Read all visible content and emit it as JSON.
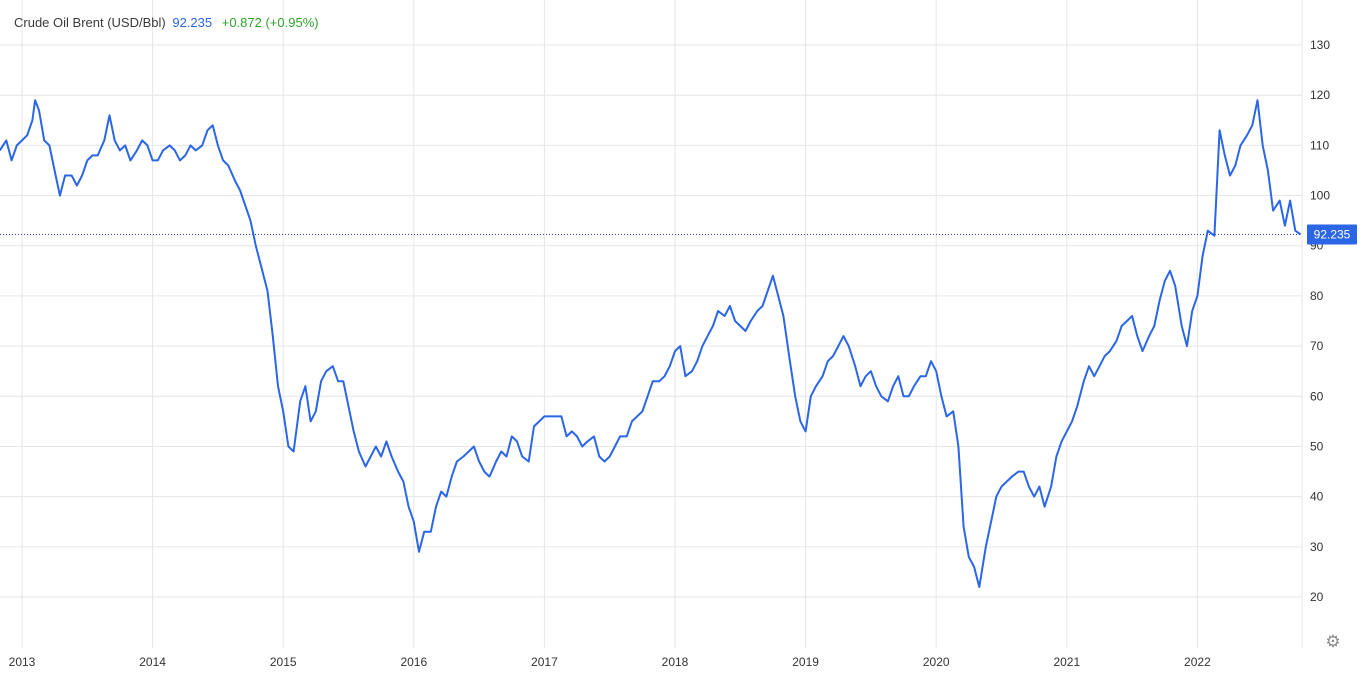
{
  "legend": {
    "name": "Crude Oil Brent (USD/Bbl)",
    "price": "92.235",
    "change": "+0.872 (+0.95%)"
  },
  "current_price_label": "92.235",
  "colors": {
    "line": "#2a66e6",
    "price_tag": "#2a66e6",
    "change_positive": "#2ba52b",
    "grid": "#e6e6e6"
  },
  "settings_icon": "gear-icon",
  "chart_data": {
    "type": "line",
    "title": "Crude Oil Brent (USD/Bbl)",
    "xlabel": "",
    "ylabel": "",
    "ylim": [
      15,
      135
    ],
    "yticks": [
      20,
      30,
      40,
      50,
      60,
      70,
      80,
      90,
      100,
      110,
      120,
      130
    ],
    "xticks": [
      "2013",
      "2014",
      "2015",
      "2016",
      "2017",
      "2018",
      "2019",
      "2020",
      "2021",
      "2022"
    ],
    "grid": true,
    "current_value": 92.235,
    "series": [
      {
        "name": "",
        "points": [
          [
            2012.83,
            109
          ],
          [
            2012.88,
            111
          ],
          [
            2012.92,
            107
          ],
          [
            2012.96,
            110
          ],
          [
            2013.0,
            111
          ],
          [
            2013.04,
            112
          ],
          [
            2013.08,
            115
          ],
          [
            2013.1,
            119
          ],
          [
            2013.13,
            117
          ],
          [
            2013.17,
            111
          ],
          [
            2013.21,
            110
          ],
          [
            2013.25,
            105
          ],
          [
            2013.29,
            100
          ],
          [
            2013.33,
            104
          ],
          [
            2013.38,
            104
          ],
          [
            2013.42,
            102
          ],
          [
            2013.46,
            104
          ],
          [
            2013.5,
            107
          ],
          [
            2013.54,
            108
          ],
          [
            2013.58,
            108
          ],
          [
            2013.63,
            111
          ],
          [
            2013.67,
            116
          ],
          [
            2013.71,
            111
          ],
          [
            2013.75,
            109
          ],
          [
            2013.79,
            110
          ],
          [
            2013.83,
            107
          ],
          [
            2013.88,
            109
          ],
          [
            2013.92,
            111
          ],
          [
            2013.96,
            110
          ],
          [
            2014.0,
            107
          ],
          [
            2014.04,
            107
          ],
          [
            2014.08,
            109
          ],
          [
            2014.13,
            110
          ],
          [
            2014.17,
            109
          ],
          [
            2014.21,
            107
          ],
          [
            2014.25,
            108
          ],
          [
            2014.29,
            110
          ],
          [
            2014.33,
            109
          ],
          [
            2014.38,
            110
          ],
          [
            2014.42,
            113
          ],
          [
            2014.46,
            114
          ],
          [
            2014.5,
            110
          ],
          [
            2014.54,
            107
          ],
          [
            2014.58,
            106
          ],
          [
            2014.63,
            103
          ],
          [
            2014.67,
            101
          ],
          [
            2014.71,
            98
          ],
          [
            2014.75,
            95
          ],
          [
            2014.79,
            90
          ],
          [
            2014.83,
            86
          ],
          [
            2014.88,
            81
          ],
          [
            2014.92,
            72
          ],
          [
            2014.96,
            62
          ],
          [
            2015.0,
            57
          ],
          [
            2015.04,
            50
          ],
          [
            2015.08,
            49
          ],
          [
            2015.13,
            59
          ],
          [
            2015.17,
            62
          ],
          [
            2015.21,
            55
          ],
          [
            2015.25,
            57
          ],
          [
            2015.29,
            63
          ],
          [
            2015.33,
            65
          ],
          [
            2015.38,
            66
          ],
          [
            2015.42,
            63
          ],
          [
            2015.46,
            63
          ],
          [
            2015.5,
            58
          ],
          [
            2015.54,
            53
          ],
          [
            2015.58,
            49
          ],
          [
            2015.63,
            46
          ],
          [
            2015.67,
            48
          ],
          [
            2015.71,
            50
          ],
          [
            2015.75,
            48
          ],
          [
            2015.79,
            51
          ],
          [
            2015.83,
            48
          ],
          [
            2015.88,
            45
          ],
          [
            2015.92,
            43
          ],
          [
            2015.96,
            38
          ],
          [
            2016.0,
            35
          ],
          [
            2016.04,
            29
          ],
          [
            2016.08,
            33
          ],
          [
            2016.13,
            33
          ],
          [
            2016.17,
            38
          ],
          [
            2016.21,
            41
          ],
          [
            2016.25,
            40
          ],
          [
            2016.29,
            44
          ],
          [
            2016.33,
            47
          ],
          [
            2016.38,
            48
          ],
          [
            2016.42,
            49
          ],
          [
            2016.46,
            50
          ],
          [
            2016.5,
            47
          ],
          [
            2016.54,
            45
          ],
          [
            2016.58,
            44
          ],
          [
            2016.63,
            47
          ],
          [
            2016.67,
            49
          ],
          [
            2016.71,
            48
          ],
          [
            2016.75,
            52
          ],
          [
            2016.79,
            51
          ],
          [
            2016.83,
            48
          ],
          [
            2016.88,
            47
          ],
          [
            2016.92,
            54
          ],
          [
            2016.96,
            55
          ],
          [
            2017.0,
            56
          ],
          [
            2017.04,
            56
          ],
          [
            2017.08,
            56
          ],
          [
            2017.13,
            56
          ],
          [
            2017.17,
            52
          ],
          [
            2017.21,
            53
          ],
          [
            2017.25,
            52
          ],
          [
            2017.29,
            50
          ],
          [
            2017.33,
            51
          ],
          [
            2017.38,
            52
          ],
          [
            2017.42,
            48
          ],
          [
            2017.46,
            47
          ],
          [
            2017.5,
            48
          ],
          [
            2017.54,
            50
          ],
          [
            2017.58,
            52
          ],
          [
            2017.63,
            52
          ],
          [
            2017.67,
            55
          ],
          [
            2017.71,
            56
          ],
          [
            2017.75,
            57
          ],
          [
            2017.79,
            60
          ],
          [
            2017.83,
            63
          ],
          [
            2017.88,
            63
          ],
          [
            2017.92,
            64
          ],
          [
            2017.96,
            66
          ],
          [
            2018.0,
            69
          ],
          [
            2018.04,
            70
          ],
          [
            2018.08,
            64
          ],
          [
            2018.13,
            65
          ],
          [
            2018.17,
            67
          ],
          [
            2018.21,
            70
          ],
          [
            2018.25,
            72
          ],
          [
            2018.29,
            74
          ],
          [
            2018.33,
            77
          ],
          [
            2018.38,
            76
          ],
          [
            2018.42,
            78
          ],
          [
            2018.46,
            75
          ],
          [
            2018.5,
            74
          ],
          [
            2018.54,
            73
          ],
          [
            2018.58,
            75
          ],
          [
            2018.63,
            77
          ],
          [
            2018.67,
            78
          ],
          [
            2018.71,
            81
          ],
          [
            2018.75,
            84
          ],
          [
            2018.79,
            80
          ],
          [
            2018.83,
            76
          ],
          [
            2018.88,
            67
          ],
          [
            2018.92,
            60
          ],
          [
            2018.96,
            55
          ],
          [
            2019.0,
            53
          ],
          [
            2019.04,
            60
          ],
          [
            2019.08,
            62
          ],
          [
            2019.13,
            64
          ],
          [
            2019.17,
            67
          ],
          [
            2019.21,
            68
          ],
          [
            2019.25,
            70
          ],
          [
            2019.29,
            72
          ],
          [
            2019.33,
            70
          ],
          [
            2019.38,
            66
          ],
          [
            2019.42,
            62
          ],
          [
            2019.46,
            64
          ],
          [
            2019.5,
            65
          ],
          [
            2019.54,
            62
          ],
          [
            2019.58,
            60
          ],
          [
            2019.63,
            59
          ],
          [
            2019.67,
            62
          ],
          [
            2019.71,
            64
          ],
          [
            2019.75,
            60
          ],
          [
            2019.79,
            60
          ],
          [
            2019.83,
            62
          ],
          [
            2019.88,
            64
          ],
          [
            2019.92,
            64
          ],
          [
            2019.96,
            67
          ],
          [
            2020.0,
            65
          ],
          [
            2020.04,
            60
          ],
          [
            2020.08,
            56
          ],
          [
            2020.13,
            57
          ],
          [
            2020.17,
            50
          ],
          [
            2020.21,
            34
          ],
          [
            2020.25,
            28
          ],
          [
            2020.29,
            26
          ],
          [
            2020.33,
            22
          ],
          [
            2020.38,
            30
          ],
          [
            2020.42,
            35
          ],
          [
            2020.46,
            40
          ],
          [
            2020.5,
            42
          ],
          [
            2020.54,
            43
          ],
          [
            2020.58,
            44
          ],
          [
            2020.63,
            45
          ],
          [
            2020.67,
            45
          ],
          [
            2020.71,
            42
          ],
          [
            2020.75,
            40
          ],
          [
            2020.79,
            42
          ],
          [
            2020.83,
            38
          ],
          [
            2020.88,
            42
          ],
          [
            2020.92,
            48
          ],
          [
            2020.96,
            51
          ],
          [
            2021.0,
            53
          ],
          [
            2021.04,
            55
          ],
          [
            2021.08,
            58
          ],
          [
            2021.13,
            63
          ],
          [
            2021.17,
            66
          ],
          [
            2021.21,
            64
          ],
          [
            2021.25,
            66
          ],
          [
            2021.29,
            68
          ],
          [
            2021.33,
            69
          ],
          [
            2021.38,
            71
          ],
          [
            2021.42,
            74
          ],
          [
            2021.46,
            75
          ],
          [
            2021.5,
            76
          ],
          [
            2021.54,
            72
          ],
          [
            2021.58,
            69
          ],
          [
            2021.63,
            72
          ],
          [
            2021.67,
            74
          ],
          [
            2021.71,
            79
          ],
          [
            2021.75,
            83
          ],
          [
            2021.79,
            85
          ],
          [
            2021.83,
            82
          ],
          [
            2021.88,
            74
          ],
          [
            2021.92,
            70
          ],
          [
            2021.96,
            77
          ],
          [
            2022.0,
            80
          ],
          [
            2022.04,
            88
          ],
          [
            2022.08,
            93
          ],
          [
            2022.13,
            92
          ],
          [
            2022.17,
            113
          ],
          [
            2022.21,
            108
          ],
          [
            2022.25,
            104
          ],
          [
            2022.29,
            106
          ],
          [
            2022.33,
            110
          ],
          [
            2022.38,
            112
          ],
          [
            2022.42,
            114
          ],
          [
            2022.46,
            119
          ],
          [
            2022.5,
            110
          ],
          [
            2022.54,
            105
          ],
          [
            2022.58,
            97
          ],
          [
            2022.63,
            99
          ],
          [
            2022.67,
            94
          ],
          [
            2022.71,
            99
          ],
          [
            2022.75,
            93
          ],
          [
            2022.79,
            92.235
          ]
        ]
      }
    ]
  }
}
